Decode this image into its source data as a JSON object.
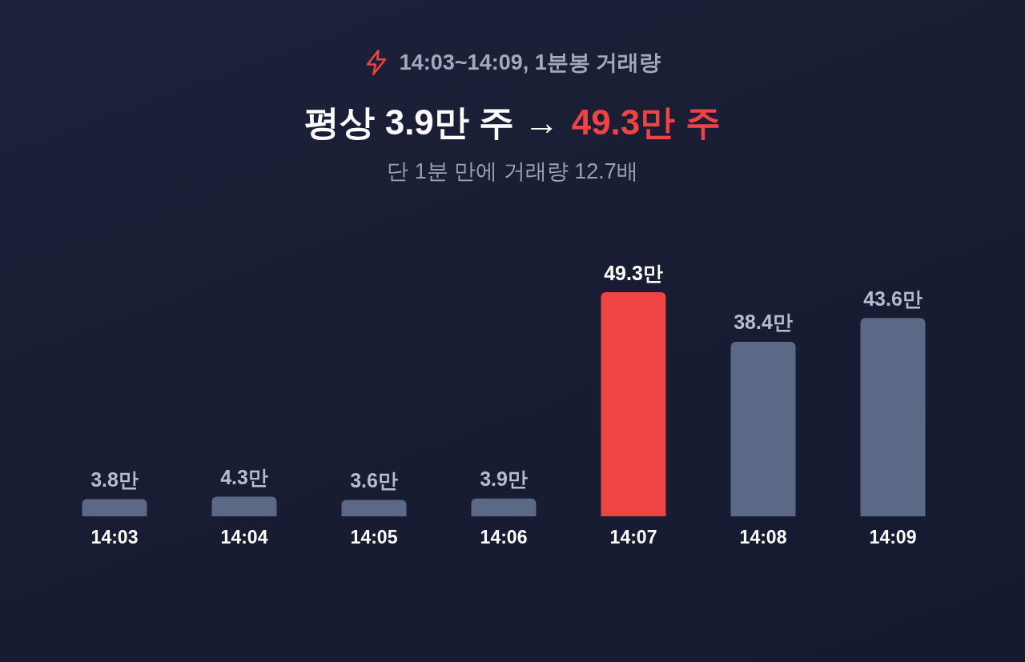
{
  "chart_data": {
    "type": "bar",
    "title": "14:03~14:09, 1분봉 거래량",
    "subtitle": "단 1분 만에 거래량 12.7배",
    "annotations": [
      "평상 3.9만 주 →",
      "49.3만 주"
    ],
    "categories": [
      "14:03",
      "14:04",
      "14:05",
      "14:06",
      "14:07",
      "14:08",
      "14:09"
    ],
    "values": [
      3.8,
      4.3,
      3.6,
      3.9,
      49.3,
      38.4,
      43.6
    ],
    "colors": [
      "#5b6886",
      "#5b6886",
      "#5b6886",
      "#5b6886",
      "#ef4444",
      "#5b6886",
      "#5b6886"
    ],
    "value_labels": [
      "3.8만",
      "4.3만",
      "3.6만",
      "3.9만",
      "49.3만",
      "38.4만",
      "43.6만"
    ]
  }
}
